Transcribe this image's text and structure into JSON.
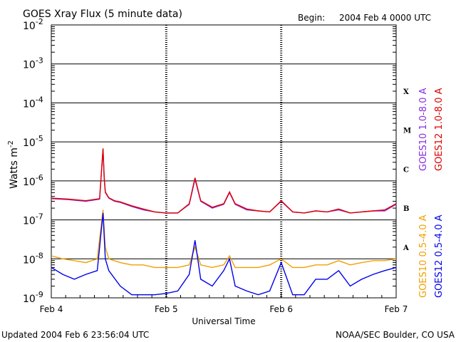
{
  "chart_data": {
    "type": "line",
    "title": "GOES Xray Flux (5 minute data)",
    "begin_label": "Begin:",
    "begin_value": "2004 Feb 4 0000 UTC",
    "ylabel": "Watts m",
    "ylabel_sup": "-2",
    "xlabel": "Universal Time",
    "yscale": "log",
    "ylim": [
      1e-09,
      0.01
    ],
    "y_ticks": [
      {
        "value": 0.01,
        "base": "10",
        "exp": "-2"
      },
      {
        "value": 0.001,
        "base": "10",
        "exp": "-3"
      },
      {
        "value": 0.0001,
        "base": "10",
        "exp": "-4"
      },
      {
        "value": 1e-05,
        "base": "10",
        "exp": "-5"
      },
      {
        "value": 1e-06,
        "base": "10",
        "exp": "-6"
      },
      {
        "value": 1e-07,
        "base": "10",
        "exp": "-7"
      },
      {
        "value": 1e-08,
        "base": "10",
        "exp": "-8"
      },
      {
        "value": 1e-09,
        "base": "10",
        "exp": "-9"
      }
    ],
    "x_ticks": [
      {
        "value": 0,
        "label": "Feb 4"
      },
      {
        "value": 1,
        "label": "Feb 5"
      },
      {
        "value": 2,
        "label": "Feb 6"
      },
      {
        "value": 3,
        "label": "Feb 7"
      }
    ],
    "xlim": [
      0,
      3
    ],
    "flare_classes": [
      {
        "label": "X",
        "value": 0.0002
      },
      {
        "label": "M",
        "value": 2e-05
      },
      {
        "label": "C",
        "value": 2e-06
      },
      {
        "label": "B",
        "value": 2e-07
      },
      {
        "label": "A",
        "value": 2e-08
      }
    ],
    "series": [
      {
        "name": "GOES10 1.0-8.0 A",
        "color": "#8a2be2",
        "x": [
          0,
          0.15,
          0.3,
          0.42,
          0.45,
          0.46,
          0.47,
          0.5,
          0.55,
          0.6,
          0.7,
          0.8,
          0.9,
          1.0,
          1.1,
          1.2,
          1.25,
          1.3,
          1.4,
          1.5,
          1.55,
          1.6,
          1.7,
          1.8,
          1.9,
          2.0,
          2.1,
          2.2,
          2.3,
          2.4,
          2.5,
          2.6,
          2.7,
          2.8,
          2.9,
          3.0
        ],
        "values": [
          3.5e-07,
          3.3e-07,
          3e-07,
          3.4e-07,
          6.5e-06,
          1.2e-06,
          5e-07,
          3.6e-07,
          3e-07,
          2.8e-07,
          2.2e-07,
          1.8e-07,
          1.6e-07,
          1.5e-07,
          1.5e-07,
          2.5e-07,
          1.1e-06,
          3e-07,
          2e-07,
          2.5e-07,
          5e-07,
          2.5e-07,
          1.8e-07,
          1.7e-07,
          1.6e-07,
          3e-07,
          1.6e-07,
          1.5e-07,
          1.7e-07,
          1.6e-07,
          1.8e-07,
          1.5e-07,
          1.6e-07,
          1.7e-07,
          1.7e-07,
          2.5e-07
        ]
      },
      {
        "name": "GOES12 1.0-8.0 A",
        "color": "#dd0000",
        "x": [
          0,
          0.15,
          0.3,
          0.42,
          0.45,
          0.46,
          0.47,
          0.5,
          0.55,
          0.6,
          0.7,
          0.8,
          0.9,
          1.0,
          1.1,
          1.2,
          1.25,
          1.3,
          1.4,
          1.5,
          1.55,
          1.6,
          1.7,
          1.8,
          1.9,
          2.0,
          2.1,
          2.2,
          2.3,
          2.4,
          2.5,
          2.6,
          2.7,
          2.8,
          2.9,
          3.0
        ],
        "values": [
          3.6e-07,
          3.4e-07,
          3.1e-07,
          3.5e-07,
          6.8e-06,
          1.3e-06,
          5.2e-07,
          3.7e-07,
          3.1e-07,
          2.9e-07,
          2.3e-07,
          1.9e-07,
          1.6e-07,
          1.5e-07,
          1.5e-07,
          2.6e-07,
          1.2e-06,
          3.1e-07,
          2.1e-07,
          2.6e-07,
          5.2e-07,
          2.6e-07,
          1.9e-07,
          1.7e-07,
          1.6e-07,
          3.1e-07,
          1.6e-07,
          1.5e-07,
          1.7e-07,
          1.6e-07,
          1.9e-07,
          1.5e-07,
          1.6e-07,
          1.7e-07,
          1.8e-07,
          2.6e-07
        ]
      },
      {
        "name": "GOES10 0.5-4.0 A",
        "color": "#f0a000",
        "x": [
          0,
          0.1,
          0.2,
          0.3,
          0.4,
          0.45,
          0.47,
          0.5,
          0.6,
          0.7,
          0.8,
          0.9,
          1.0,
          1.1,
          1.2,
          1.25,
          1.3,
          1.4,
          1.5,
          1.55,
          1.6,
          1.7,
          1.8,
          1.9,
          2.0,
          2.1,
          2.2,
          2.3,
          2.4,
          2.5,
          2.6,
          2.7,
          2.8,
          2.9,
          3.0
        ],
        "values": [
          1.2e-08,
          1e-08,
          9e-09,
          8e-09,
          1e-08,
          1.8e-07,
          2e-08,
          1e-08,
          8e-09,
          7e-09,
          7e-09,
          6e-09,
          6e-09,
          6e-09,
          7e-09,
          2e-08,
          7e-09,
          6e-09,
          7e-09,
          1.2e-08,
          6e-09,
          6e-09,
          6e-09,
          7e-09,
          1e-08,
          6e-09,
          6e-09,
          7e-09,
          7e-09,
          9e-09,
          7e-09,
          8e-09,
          9e-09,
          9e-09,
          1e-08
        ]
      },
      {
        "name": "GOES12 0.5-4.0 A",
        "color": "#0000ee",
        "x": [
          0,
          0.1,
          0.2,
          0.3,
          0.4,
          0.45,
          0.47,
          0.5,
          0.6,
          0.7,
          0.8,
          0.9,
          1.0,
          1.1,
          1.2,
          1.25,
          1.3,
          1.4,
          1.5,
          1.55,
          1.6,
          1.7,
          1.8,
          1.9,
          2.0,
          2.1,
          2.2,
          2.3,
          2.4,
          2.5,
          2.6,
          2.7,
          2.8,
          2.9,
          3.0
        ],
        "values": [
          6e-09,
          4e-09,
          3e-09,
          4e-09,
          5e-09,
          1.5e-07,
          1e-08,
          5e-09,
          2e-09,
          1.2e-09,
          1.2e-09,
          1.2e-09,
          1.3e-09,
          1.5e-09,
          4e-09,
          3e-08,
          3e-09,
          2e-09,
          5e-09,
          1e-08,
          2e-09,
          1.5e-09,
          1.2e-09,
          1.5e-09,
          8e-09,
          1.2e-09,
          1.2e-09,
          3e-09,
          3e-09,
          5e-09,
          2e-09,
          3e-09,
          4e-09,
          5e-09,
          6e-09
        ]
      }
    ],
    "legend_placement": "right (rotated)",
    "grid": true
  },
  "footer": {
    "updated": "Updated 2004 Feb  6 23:56:04 UTC",
    "credit": "NOAA/SEC Boulder, CO USA"
  }
}
